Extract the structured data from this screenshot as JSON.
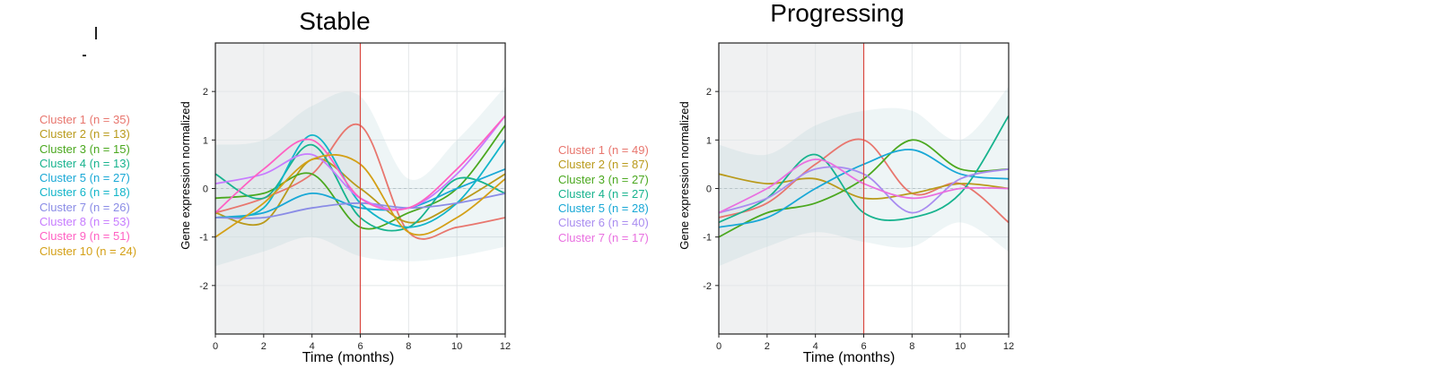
{
  "colors": [
    "#E8766E",
    "#B99A1B",
    "#4BA81F",
    "#17B38E",
    "#19A8D6",
    "#9C8FE8",
    "#E67BE0",
    "#C77CFF",
    "#FF61C3",
    "#D4A017"
  ],
  "chart_data": [
    {
      "type": "line",
      "title": "Stable",
      "xlabel": "Time (months)",
      "ylabel": "Gene expression normalized",
      "xlim": [
        0,
        12
      ],
      "ylim": [
        -3,
        3
      ],
      "xticks": [
        "0",
        "2",
        "4",
        "6",
        "8",
        "10",
        "12"
      ],
      "yticks": [
        "-2",
        "-1",
        "0",
        "1",
        "2"
      ],
      "shaded_region": [
        0,
        6
      ],
      "vline": 6,
      "grid": true,
      "legend": "left",
      "series": [
        {
          "name": "Cluster 1 (n = 35)",
          "color": "#E8766E",
          "x": [
            0,
            2,
            4,
            6,
            8,
            10,
            12
          ],
          "values": [
            -0.5,
            -0.2,
            0.3,
            1.3,
            -0.9,
            -0.8,
            -0.6
          ]
        },
        {
          "name": "Cluster 2 (n = 13)",
          "color": "#B99A1B",
          "x": [
            0,
            2,
            4,
            6,
            8,
            10,
            12
          ],
          "values": [
            -0.5,
            -0.7,
            0.6,
            0.0,
            -0.7,
            -0.3,
            0.3
          ]
        },
        {
          "name": "Cluster 3 (n = 15)",
          "color": "#4BA81F",
          "x": [
            0,
            2,
            4,
            6,
            8,
            10,
            12
          ],
          "values": [
            -0.2,
            -0.1,
            0.3,
            -0.8,
            -0.5,
            0.0,
            1.3
          ]
        },
        {
          "name": "Cluster 4 (n = 13)",
          "color": "#17B38E",
          "x": [
            0,
            2,
            4,
            6,
            8,
            10,
            12
          ],
          "values": [
            0.3,
            -0.2,
            0.9,
            -0.6,
            -0.8,
            0.2,
            -0.1
          ]
        },
        {
          "name": "Cluster 5 (n = 27)",
          "color": "#19A8D6",
          "x": [
            0,
            2,
            4,
            6,
            8,
            10,
            12
          ],
          "values": [
            -0.6,
            -0.5,
            -0.1,
            -0.4,
            -0.4,
            0.0,
            0.4
          ]
        },
        {
          "name": "Cluster 6 (n = 18)",
          "color": "#12B5C9",
          "x": [
            0,
            2,
            4,
            6,
            8,
            10,
            12
          ],
          "values": [
            -0.6,
            -0.4,
            1.1,
            -0.3,
            -0.8,
            -0.3,
            1.0
          ]
        },
        {
          "name": "Cluster 7 (n = 26)",
          "color": "#8A8CE6",
          "x": [
            0,
            2,
            4,
            6,
            8,
            10,
            12
          ],
          "values": [
            -0.6,
            -0.6,
            -0.4,
            -0.3,
            -0.4,
            -0.3,
            -0.1
          ]
        },
        {
          "name": "Cluster 8 (n = 53)",
          "color": "#C77CFF",
          "x": [
            0,
            2,
            4,
            6,
            8,
            10,
            12
          ],
          "values": [
            0.1,
            0.3,
            0.7,
            -0.2,
            -0.4,
            0.3,
            1.5
          ]
        },
        {
          "name": "Cluster 9 (n = 51)",
          "color": "#FF61C3",
          "x": [
            0,
            2,
            4,
            6,
            8,
            10,
            12
          ],
          "values": [
            -0.5,
            0.4,
            1.0,
            -0.2,
            -0.4,
            0.4,
            1.5
          ]
        },
        {
          "name": "Cluster 10 (n = 24)",
          "color": "#D4A017",
          "x": [
            0,
            2,
            4,
            6,
            8,
            10,
            12
          ],
          "values": [
            -1.0,
            -0.3,
            0.6,
            0.5,
            -0.9,
            -0.6,
            0.2
          ]
        }
      ]
    },
    {
      "type": "line",
      "title": "Progressing",
      "xlabel": "Time (months)",
      "ylabel": "Gene expression normalized",
      "xlim": [
        0,
        12
      ],
      "ylim": [
        -3,
        3
      ],
      "xticks": [
        "0",
        "2",
        "4",
        "6",
        "8",
        "10",
        "12"
      ],
      "yticks": [
        "-2",
        "-1",
        "0",
        "1",
        "2"
      ],
      "shaded_region": [
        0,
        6
      ],
      "vline": 6,
      "grid": true,
      "legend": "left",
      "series": [
        {
          "name": "Cluster 1 (n = 49)",
          "color": "#E8766E",
          "x": [
            0,
            2,
            4,
            6,
            8,
            10,
            12
          ],
          "values": [
            -0.6,
            -0.3,
            0.5,
            1.0,
            -0.1,
            0.1,
            -0.7
          ]
        },
        {
          "name": "Cluster 2 (n = 87)",
          "color": "#B99A1B",
          "x": [
            0,
            2,
            4,
            6,
            8,
            10,
            12
          ],
          "values": [
            0.3,
            0.1,
            0.2,
            -0.2,
            -0.1,
            0.1,
            0.0
          ]
        },
        {
          "name": "Cluster 3 (n = 27)",
          "color": "#4BA81F",
          "x": [
            0,
            2,
            4,
            6,
            8,
            10,
            12
          ],
          "values": [
            -1.0,
            -0.5,
            -0.3,
            0.2,
            1.0,
            0.4,
            0.4
          ]
        },
        {
          "name": "Cluster 4 (n = 27)",
          "color": "#17B38E",
          "x": [
            0,
            2,
            4,
            6,
            8,
            10,
            12
          ],
          "values": [
            -0.7,
            -0.2,
            0.7,
            -0.5,
            -0.6,
            -0.1,
            1.5
          ]
        },
        {
          "name": "Cluster 5 (n = 28)",
          "color": "#19A8D6",
          "x": [
            0,
            2,
            4,
            6,
            8,
            10,
            12
          ],
          "values": [
            -0.8,
            -0.6,
            0.0,
            0.5,
            0.8,
            0.3,
            0.2
          ]
        },
        {
          "name": "Cluster 6 (n = 40)",
          "color": "#A98CF0",
          "x": [
            0,
            2,
            4,
            6,
            8,
            10,
            12
          ],
          "values": [
            -0.5,
            -0.2,
            0.4,
            0.3,
            -0.5,
            0.2,
            0.4
          ]
        },
        {
          "name": "Cluster 7 (n = 17)",
          "color": "#E970E0",
          "x": [
            0,
            2,
            4,
            6,
            8,
            10,
            12
          ],
          "values": [
            -0.5,
            0.0,
            0.6,
            0.1,
            -0.2,
            0.0,
            0.0
          ]
        }
      ]
    }
  ]
}
